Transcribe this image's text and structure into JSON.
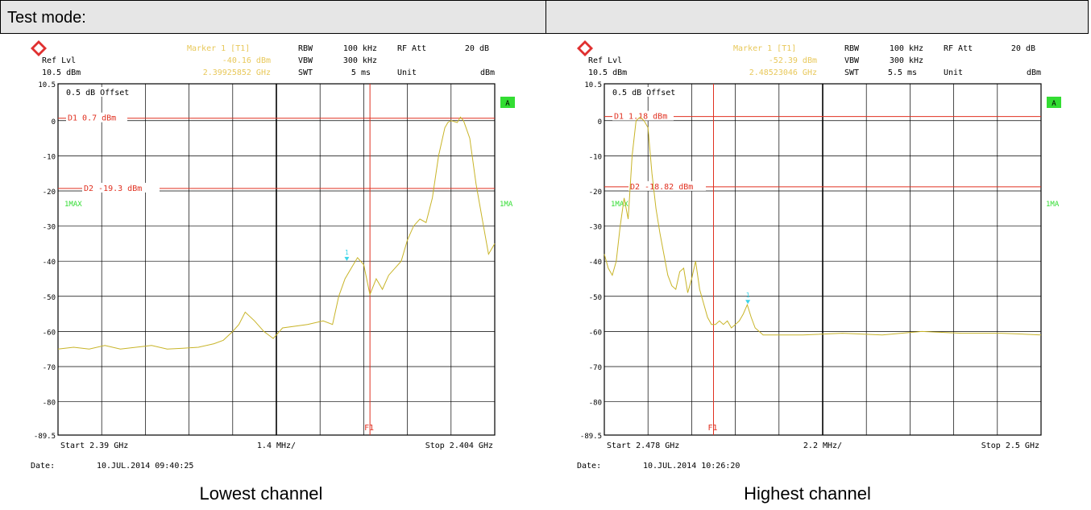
{
  "header": {
    "test_mode_label": "Test mode:"
  },
  "colors": {
    "trace": "#c8b428",
    "limit": "#e03020",
    "marker": "#3ad4e8",
    "status": "#33dd33",
    "grid": "#000000",
    "annot": "#e8c85a"
  },
  "panels": [
    {
      "marker_title": "Marker 1 [T1]",
      "marker_level": "-40.16 dBm",
      "marker_freq": "2.39925852 GHz",
      "rbw_label": "RBW",
      "rbw_value": "100 kHz",
      "vbw_label": "VBW",
      "vbw_value": "300 kHz",
      "swt_label": "SWT",
      "swt_value": "5 ms",
      "rfatt_label": "RF Att",
      "rfatt_value": "20 dB",
      "unit_label": "Unit",
      "unit_value": "dBm",
      "ref_lvl_label": "Ref Lvl",
      "ref_lvl_value": "10.5 dBm",
      "offset_label": "0.5 dB Offset",
      "status_a": "A",
      "trace_label_left": "1MAX",
      "trace_label_right": "1MA",
      "d1_label": "D1 0.7 dBm",
      "d2_label": "D2 -19.3 dBm",
      "f1_label": "F1",
      "marker_num": "1",
      "start_label": "Start 2.39 GHz",
      "span_label": "1.4 MHz/",
      "stop_label": "Stop 2.404 GHz",
      "date_label": "Date:",
      "date_value": "10.JUL.2014  09:40:25",
      "caption": "Lowest channel",
      "yticks": [
        "10.5",
        "0",
        "-10",
        "-20",
        "-30",
        "-40",
        "-50",
        "-60",
        "-70",
        "-80",
        "-89.5"
      ]
    },
    {
      "marker_title": "Marker 1 [T1]",
      "marker_level": "-52.39 dBm",
      "marker_freq": "2.48523046 GHz",
      "rbw_label": "RBW",
      "rbw_value": "100 kHz",
      "vbw_label": "VBW",
      "vbw_value": "300 kHz",
      "swt_label": "SWT",
      "swt_value": "5.5 ms",
      "rfatt_label": "RF Att",
      "rfatt_value": "20 dB",
      "unit_label": "Unit",
      "unit_value": "dBm",
      "ref_lvl_label": "Ref Lvl",
      "ref_lvl_value": "10.5 dBm",
      "offset_label": "0.5 dB Offset",
      "status_a": "A",
      "trace_label_left": "1MAX",
      "trace_label_right": "1MA",
      "d1_label": "D1 1.18 dBm",
      "d2_label": "D2 -18.82 dBm",
      "f1_label": "F1",
      "marker_num": "1",
      "start_label": "Start 2.478 GHz",
      "span_label": "2.2 MHz/",
      "stop_label": "Stop 2.5 GHz",
      "date_label": "Date:",
      "date_value": "10.JUL.2014  10:26:20",
      "caption": "Highest channel",
      "yticks": [
        "10.5",
        "0",
        "-10",
        "-20",
        "-30",
        "-40",
        "-50",
        "-60",
        "-70",
        "-80",
        "-89.5"
      ]
    }
  ],
  "chart_data": [
    {
      "type": "line",
      "title": "Lowest channel",
      "ylim": [
        -89.5,
        10.5
      ],
      "xlim": [
        2.39,
        2.404
      ],
      "x_unit": "GHz",
      "y_unit": "dBm",
      "grid": true,
      "lines": [
        {
          "name": "D1",
          "y": 0.7
        },
        {
          "name": "D2",
          "y": -19.3
        },
        {
          "name": "F1",
          "x": 2.4
        }
      ],
      "marker": {
        "x": 2.39925852,
        "y": -40.16
      },
      "series": [
        {
          "x": [
            2.39,
            2.3905,
            2.391,
            2.3915,
            2.392,
            2.3925,
            2.393,
            2.3935,
            2.394,
            2.3945,
            2.395,
            2.3953,
            2.3956,
            2.3958,
            2.396,
            2.3963,
            2.3966,
            2.3969,
            2.397,
            2.3972,
            2.398,
            2.3985,
            2.3988,
            2.399,
            2.3992,
            2.3994,
            2.3996,
            2.3998,
            2.4,
            2.4002,
            2.4004,
            2.4006,
            2.4008,
            2.401,
            2.4012,
            2.4014,
            2.4016,
            2.4018,
            2.402,
            2.4022,
            2.4024,
            2.4025,
            2.4026,
            2.4028,
            2.4029,
            2.403,
            2.4032,
            2.4034,
            2.4036,
            2.4038,
            2.404
          ],
          "y": [
            -65,
            -64.5,
            -65,
            -64,
            -65,
            -64.5,
            -64,
            -65,
            -64.8,
            -64.5,
            -63.5,
            -62.5,
            -60,
            -58,
            -54.5,
            -57,
            -60,
            -62,
            -61,
            -59,
            -58,
            -57,
            -58,
            -50,
            -45,
            -42,
            -39,
            -41,
            -49.5,
            -45,
            -48,
            -44,
            -42,
            -40,
            -34,
            -30,
            -28,
            -29,
            -22,
            -10,
            -2,
            -0.5,
            0,
            -0.5,
            1,
            0,
            -5,
            -18,
            -28,
            -38,
            -35
          ]
        }
      ]
    },
    {
      "type": "line",
      "title": "Highest channel",
      "ylim": [
        -89.5,
        10.5
      ],
      "xlim": [
        2.478,
        2.5
      ],
      "x_unit": "GHz",
      "y_unit": "dBm",
      "grid": true,
      "lines": [
        {
          "name": "D1",
          "y": 1.18
        },
        {
          "name": "D2",
          "y": -18.82
        },
        {
          "name": "F1",
          "x": 2.4835
        }
      ],
      "marker": {
        "x": 2.48523046,
        "y": -52.39
      },
      "series": [
        {
          "x": [
            2.478,
            2.4782,
            2.4784,
            2.4786,
            2.4788,
            2.479,
            2.4792,
            2.4794,
            2.4796,
            2.4798,
            2.48,
            2.4802,
            2.4804,
            2.4806,
            2.4808,
            2.481,
            2.4812,
            2.4814,
            2.4816,
            2.4818,
            2.482,
            2.4822,
            2.4824,
            2.4826,
            2.4828,
            2.483,
            2.4832,
            2.4834,
            2.4836,
            2.4838,
            2.484,
            2.4842,
            2.4844,
            2.4846,
            2.4848,
            2.485,
            2.4852,
            2.4854,
            2.4856,
            2.4858,
            2.486,
            2.487,
            2.488,
            2.49,
            2.492,
            2.494,
            2.496,
            2.498,
            2.5
          ],
          "y": [
            -38,
            -42,
            -44,
            -40,
            -30,
            -22,
            -28,
            -10,
            0,
            1,
            0,
            -2,
            -15,
            -25,
            -32,
            -38,
            -44,
            -47,
            -48,
            -43,
            -42,
            -49,
            -45,
            -40,
            -48,
            -52,
            -56,
            -58,
            -58,
            -57,
            -58,
            -57,
            -59,
            -58,
            -57,
            -55,
            -52.4,
            -56,
            -59,
            -60,
            -61,
            -61,
            -61,
            -60.5,
            -61,
            -60,
            -60.5,
            -60.5,
            -61
          ]
        }
      ]
    }
  ]
}
